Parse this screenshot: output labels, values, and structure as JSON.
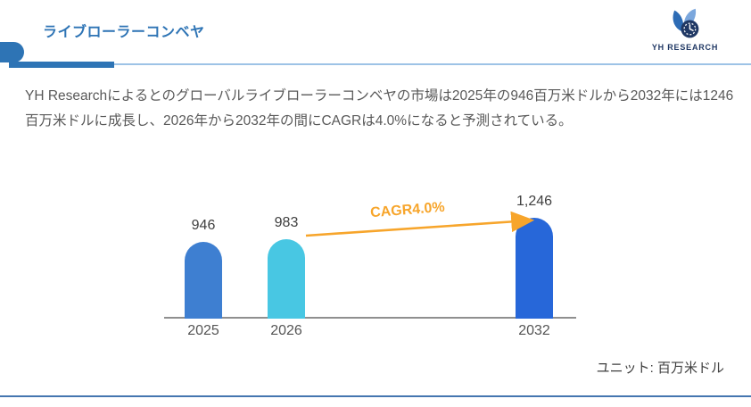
{
  "page": {
    "title": "ライブローラーコンベヤ",
    "logo": {
      "text": "YH RESEARCH"
    },
    "description": "YH Researchによるとのグローバルライブローラーコンベヤの市場は2025年の946百万米ドルから2032年には1246百万米ドルに成長し、2026年から2032年の間にCAGRは4.0%になると予測されている。",
    "unit_note": "ユニット: 百万米ドル"
  },
  "chart_data": {
    "type": "bar",
    "categories": [
      "2025",
      "2026",
      "2032"
    ],
    "values": [
      946,
      983,
      1246
    ],
    "value_labels": [
      "946",
      "983",
      "1,246"
    ],
    "unit": "百万米ドル",
    "annotation": "CAGR4.0%",
    "annotation_color": "#f7a52b",
    "bar_colors": [
      "#3e7fd1",
      "#48c7e3",
      "#2767d9"
    ],
    "axis_color": "#8f8f8f",
    "ylim": [
      0,
      1300
    ],
    "grid": false,
    "legend": false,
    "title": "",
    "xlabel": "",
    "ylabel": ""
  },
  "colors": {
    "accent_blue": "#2e74b5",
    "light_blue_rule": "#9dc3e6",
    "footer_rule": "#4576b0",
    "logo_navy": "#203864",
    "body_text": "#595959"
  }
}
